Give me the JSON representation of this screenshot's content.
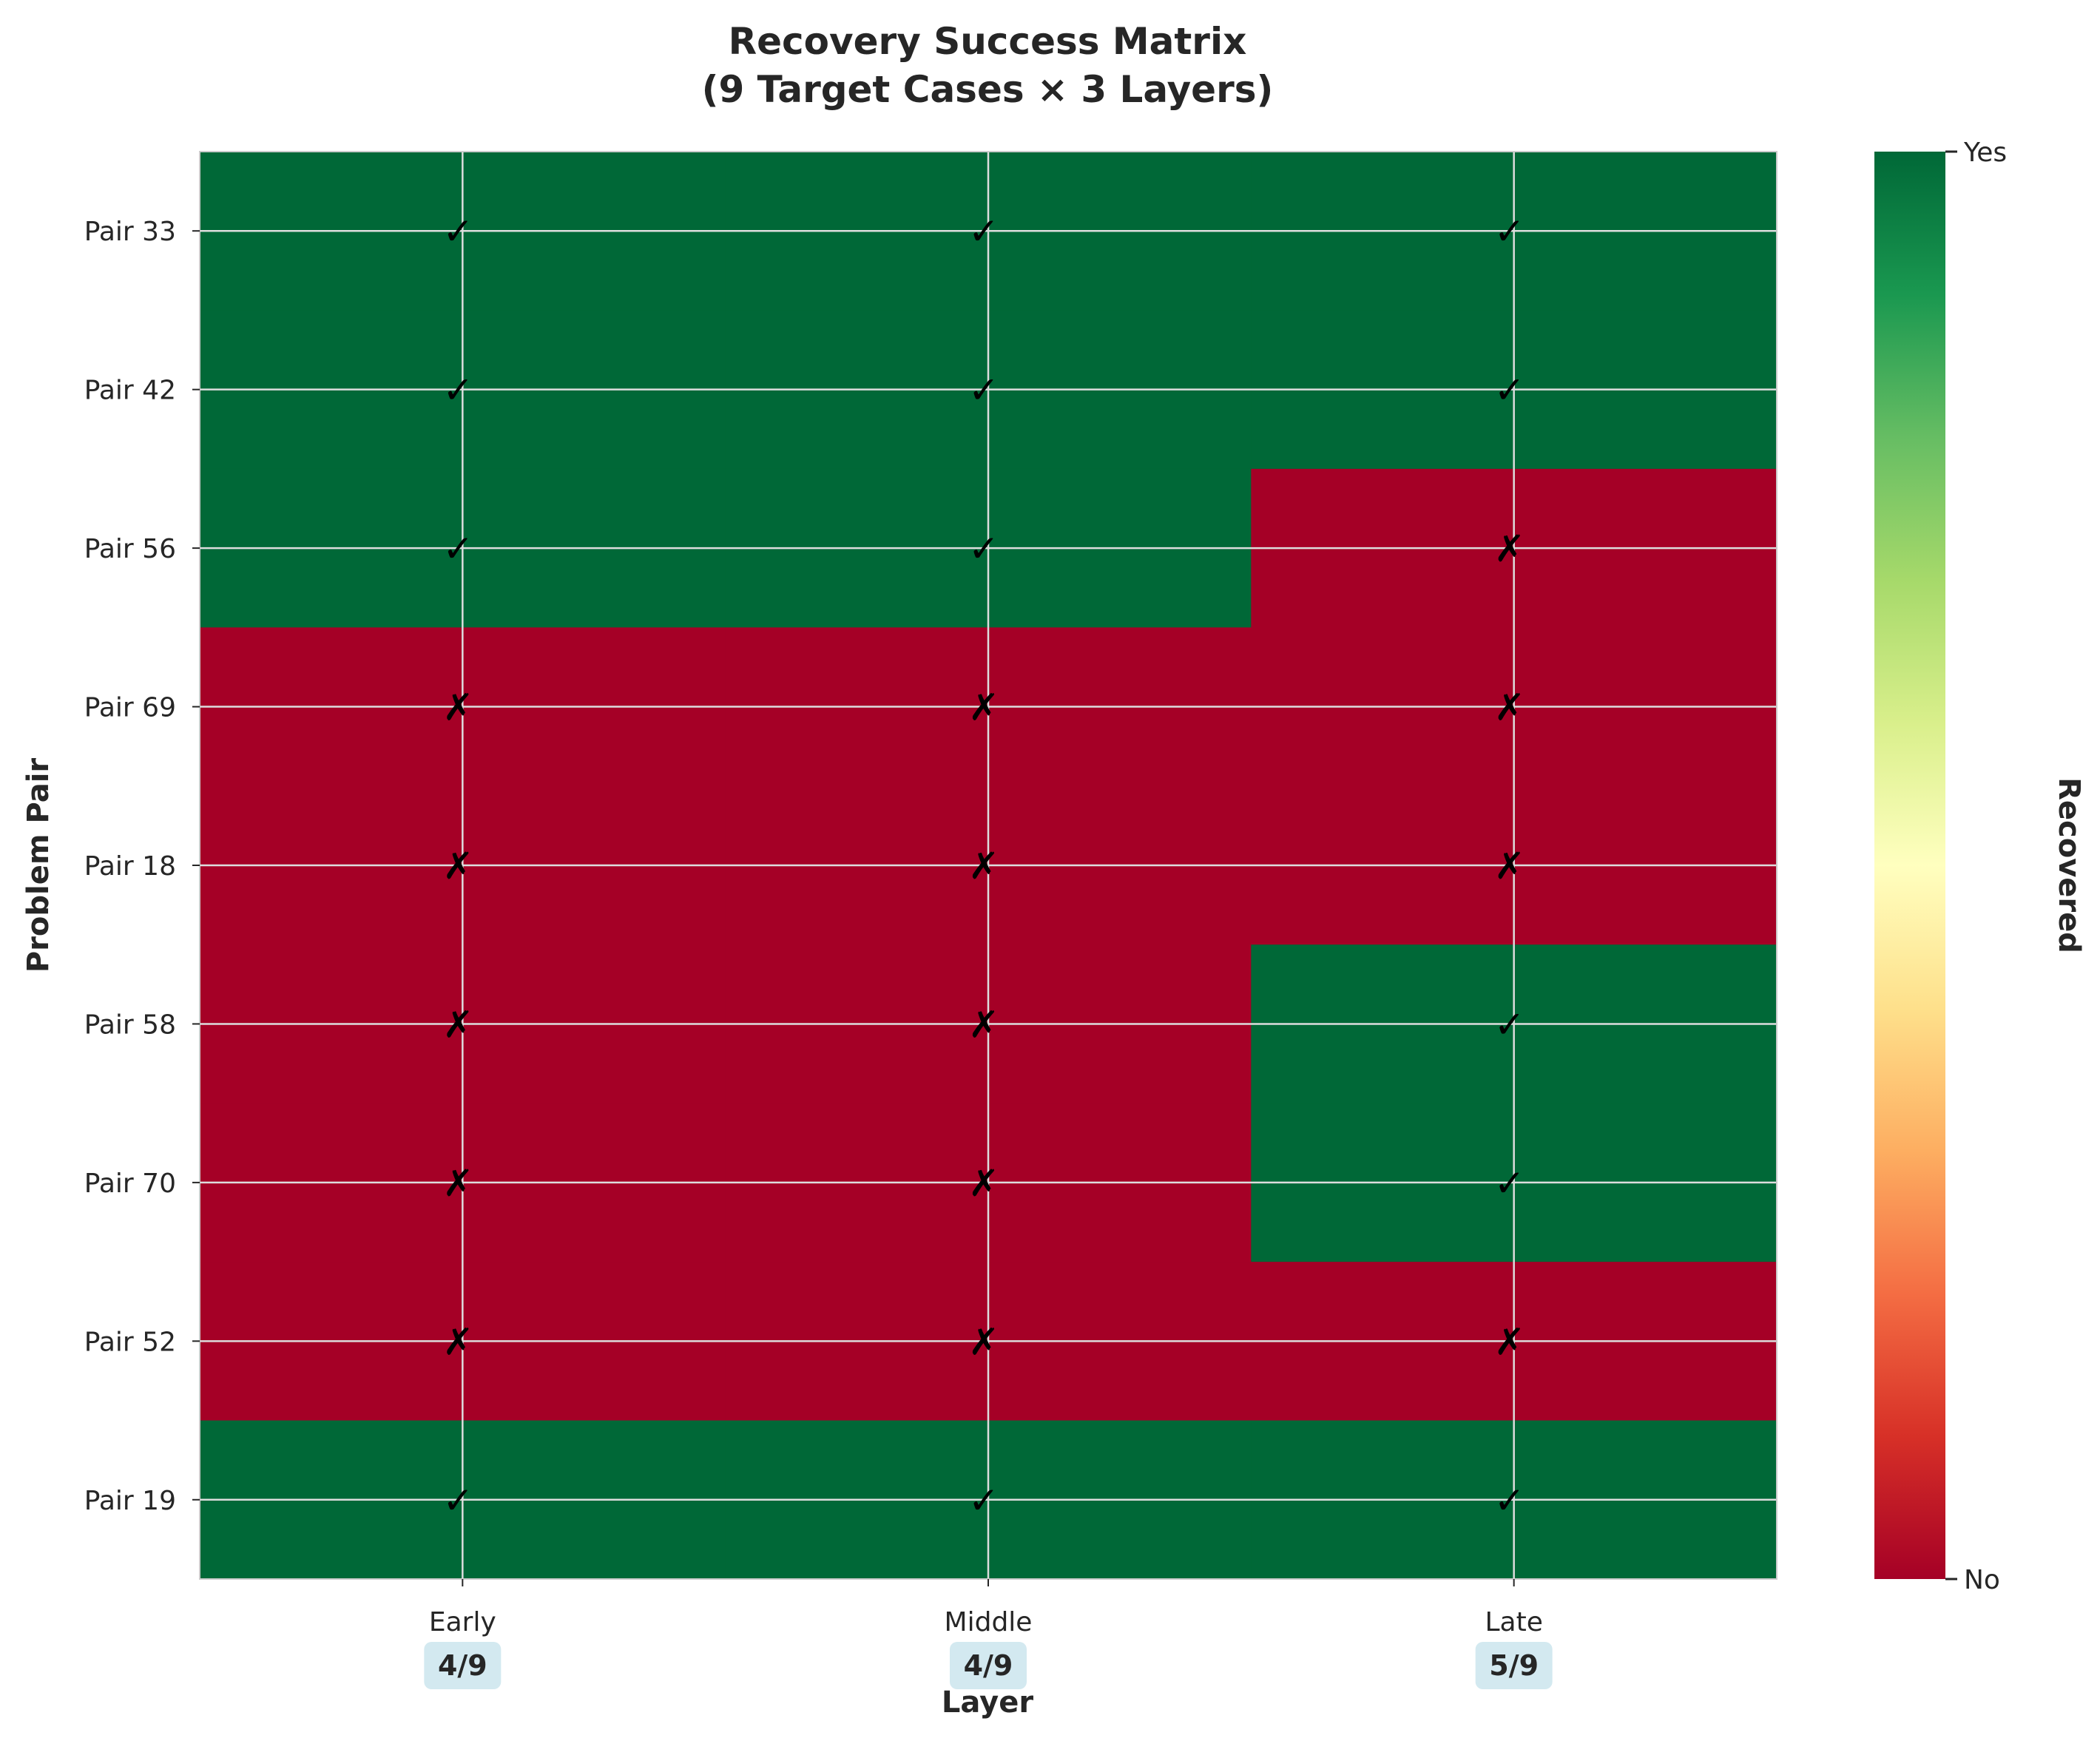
{
  "chart_data": {
    "type": "heatmap",
    "title": "Recovery Success Matrix",
    "subtitle": "(9 Target Cases × 3 Layers)",
    "xlabel": "Layer",
    "ylabel": "Problem Pair",
    "x_categories": [
      "Early",
      "Middle",
      "Late"
    ],
    "y_categories": [
      "Pair 33",
      "Pair 42",
      "Pair 56",
      "Pair 69",
      "Pair 18",
      "Pair 58",
      "Pair 70",
      "Pair 52",
      "Pair 19"
    ],
    "values": [
      [
        1,
        1,
        1
      ],
      [
        1,
        1,
        1
      ],
      [
        1,
        1,
        0
      ],
      [
        0,
        0,
        0
      ],
      [
        0,
        0,
        0
      ],
      [
        0,
        0,
        1
      ],
      [
        0,
        0,
        1
      ],
      [
        0,
        0,
        0
      ],
      [
        1,
        1,
        1
      ]
    ],
    "column_counts": [
      "4/9",
      "4/9",
      "5/9"
    ],
    "marks": {
      "yes": "✓",
      "no": "✗"
    },
    "colorbar": {
      "label": "Recovered",
      "ticks": [
        "No",
        "Yes"
      ],
      "range": [
        0,
        1
      ],
      "colormap": "RdYlGn"
    },
    "colors": {
      "yes": "#006837",
      "no": "#a50026",
      "grid": "#dddddd",
      "count_badge": "#d3e9f0",
      "text": "#262626"
    },
    "grid": true
  }
}
